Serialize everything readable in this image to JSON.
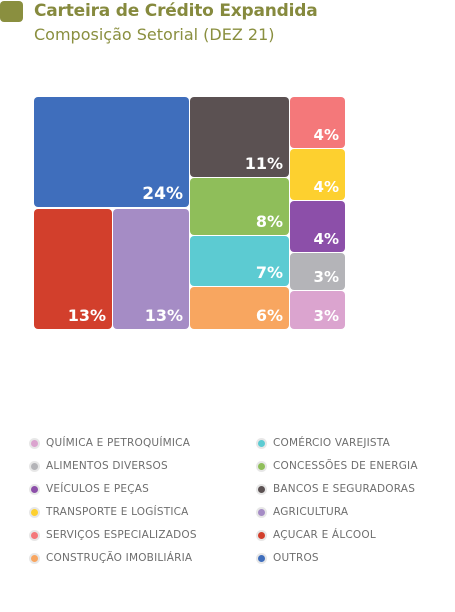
{
  "header": {
    "title": "Carteira de Crédito Expandida",
    "subtitle": "Composição Setorial (DEZ 21)"
  },
  "colors": {
    "header_square": "#8a8f3f",
    "title": "#868a3e"
  },
  "chart_data": {
    "type": "treemap",
    "title": "Carteira de Crédito Expandida",
    "subtitle": "Composição Setorial (DEZ 21)",
    "unit": "%",
    "sectors": [
      {
        "name": "OUTROS",
        "value": 24,
        "label": "24%",
        "color": "#3f6ebc"
      },
      {
        "name": "AÇUCAR E ÁLCOOL",
        "value": 13,
        "label": "13%",
        "color": "#d23f2c"
      },
      {
        "name": "AGRICULTURA",
        "value": 13,
        "label": "13%",
        "color": "#a58cc5"
      },
      {
        "name": "BANCOS E SEGURADORAS",
        "value": 11,
        "label": "11%",
        "color": "#5b5152"
      },
      {
        "name": "CONCESSÕES DE ENERGIA",
        "value": 8,
        "label": "8%",
        "color": "#8fbe5a"
      },
      {
        "name": "COMÉRCIO VAREJISTA",
        "value": 7,
        "label": "7%",
        "color": "#5ccbd2"
      },
      {
        "name": "CONSTRUÇÃO IMOBILIÁRIA",
        "value": 6,
        "label": "6%",
        "color": "#f8a660"
      },
      {
        "name": "SERVIÇOS ESPECIALIZADOS",
        "value": 4,
        "label": "4%",
        "color": "#f4787a"
      },
      {
        "name": "TRANSPORTE E LOGÍSTICA",
        "value": 4,
        "label": "4%",
        "color": "#fdd02f"
      },
      {
        "name": "VEÍCULOS E PEÇAS",
        "value": 4,
        "label": "4%",
        "color": "#8c4fa9"
      },
      {
        "name": "ALIMENTOS DIVERSOS",
        "value": 3,
        "label": "3%",
        "color": "#b4b4b8"
      },
      {
        "name": "QUÍMICA E PETROQUÍMICA",
        "value": 3,
        "label": "3%",
        "color": "#dba4cf"
      }
    ]
  },
  "legend": {
    "left": [
      {
        "label": "QUÍMICA E PETROQUÍMICA",
        "color": "#dba4cf"
      },
      {
        "label": "ALIMENTOS DIVERSOS",
        "color": "#b4b4b8"
      },
      {
        "label": "VEÍCULOS E PEÇAS",
        "color": "#8c4fa9"
      },
      {
        "label": "TRANSPORTE E LOGÍSTICA",
        "color": "#fdd02f"
      },
      {
        "label": "SERVIÇOS ESPECIALIZADOS",
        "color": "#f4787a"
      },
      {
        "label": "CONSTRUÇÃO IMOBILIÁRIA",
        "color": "#f8a660"
      }
    ],
    "right": [
      {
        "label": "COMÉRCIO VAREJISTA",
        "color": "#5ccbd2"
      },
      {
        "label": "CONCESSÕES DE ENERGIA",
        "color": "#8fbe5a"
      },
      {
        "label": "BANCOS E SEGURADORAS",
        "color": "#5b5152"
      },
      {
        "label": "AGRICULTURA",
        "color": "#a58cc5"
      },
      {
        "label": "AÇUCAR E ÁLCOOL",
        "color": "#d23f2c"
      },
      {
        "label": "OUTROS",
        "color": "#3f6ebc"
      }
    ]
  }
}
